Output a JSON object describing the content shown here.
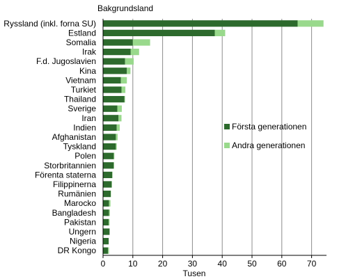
{
  "chart_data": {
    "type": "bar",
    "orientation": "horizontal",
    "stacked": true,
    "title": "Bakgrundsland",
    "xlabel": "Tusen",
    "xlim": [
      0,
      75
    ],
    "xticks": [
      0,
      10,
      20,
      30,
      40,
      50,
      60,
      70
    ],
    "grid": "vertical",
    "legend_position": "right",
    "categories": [
      "Ryssland (inkl. forna SU)",
      "Estland",
      "Somalia",
      "Irak",
      "F.d. Jugoslavien",
      "Kina",
      "Vietnam",
      "Turkiet",
      "Thailand",
      "Sverige",
      "Iran",
      "Indien",
      "Afghanistan",
      "Tyskland",
      "Polen",
      "Storbritannien",
      "Förenta staterna",
      "Filippinerna",
      "Rumänien",
      "Marocko",
      "Bangladesh",
      "Pakistan",
      "Ungern",
      "Nigeria",
      "DR Kongo"
    ],
    "series": [
      {
        "name": "Första generationen",
        "color": "#2d6a2d",
        "values": [
          65.3,
          37.5,
          10.0,
          9.3,
          7.4,
          8.0,
          6.0,
          6.2,
          7.2,
          4.8,
          5.2,
          4.6,
          4.3,
          4.3,
          3.6,
          3.6,
          3.1,
          2.9,
          2.6,
          2.0,
          2.0,
          1.9,
          2.2,
          1.9,
          1.7
        ]
      },
      {
        "name": "Andra generationen",
        "color": "#99d98c",
        "values": [
          8.7,
          3.5,
          5.8,
          2.8,
          2.9,
          1.2,
          2.0,
          1.3,
          0.2,
          1.5,
          1.0,
          1.0,
          0.6,
          0.3,
          0.2,
          0.1,
          0.1,
          0.1,
          0.1,
          0.5,
          0.3,
          0.3,
          0.0,
          0.0,
          0.3
        ]
      }
    ]
  }
}
